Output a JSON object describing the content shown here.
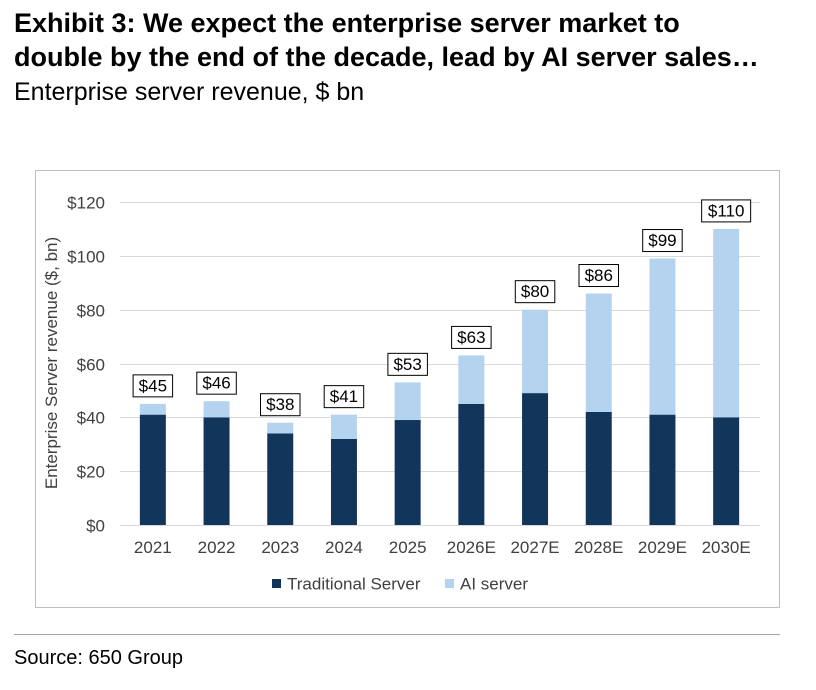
{
  "title": [
    "Exhibit 3: We expect the enterprise server market to",
    "double by the end of the decade, lead by AI server sales…"
  ],
  "subtitle": "Enterprise server revenue, $ bn",
  "source": "Source: 650 Group",
  "colors": {
    "traditional": "#12355b",
    "ai": "#b4d3ee",
    "grid": "#d9d9d9",
    "border": "#bfbfbf"
  },
  "chart_data": {
    "type": "bar",
    "stacked": true,
    "categories": [
      "2021",
      "2022",
      "2023",
      "2024",
      "2025",
      "2026E",
      "2027E",
      "2028E",
      "2029E",
      "2030E"
    ],
    "series": [
      {
        "name": "Traditional Server",
        "values": [
          41,
          40,
          34,
          32,
          39,
          45,
          49,
          42,
          41,
          40
        ]
      },
      {
        "name": "AI server",
        "values": [
          4,
          6,
          4,
          9,
          14,
          18,
          31,
          44,
          58,
          70
        ]
      }
    ],
    "totals": [
      45,
      46,
      38,
      41,
      53,
      63,
      80,
      86,
      99,
      110
    ],
    "total_labels": [
      "$45",
      "$46",
      "$38",
      "$41",
      "$53",
      "$63",
      "$80",
      "$86",
      "$99",
      "$110"
    ],
    "ylabel": "Enterprise Server revenue ($, bn)",
    "ylim": [
      0,
      120
    ],
    "yticks": [
      0,
      20,
      40,
      60,
      80,
      100,
      120
    ],
    "ytick_labels": [
      "$0",
      "$20",
      "$40",
      "$60",
      "$80",
      "$100",
      "$120"
    ],
    "grid": true,
    "legend_position": "bottom"
  }
}
